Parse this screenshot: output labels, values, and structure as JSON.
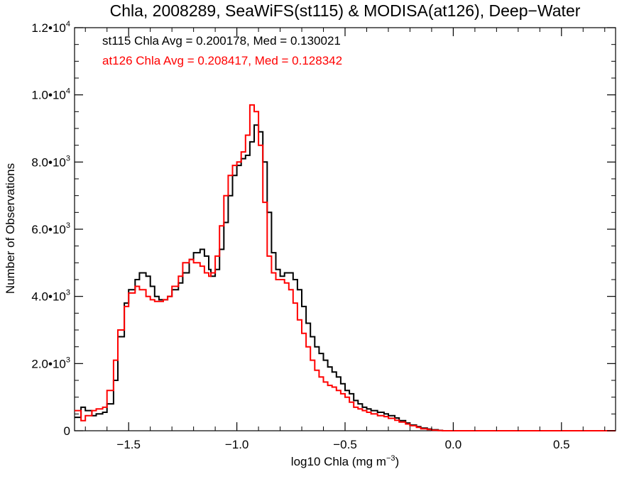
{
  "chart_data": {
    "type": "line",
    "step": true,
    "title": "Chla, 2008289, SeaWiFS(st115) & MODISA(at126), Deep−Water",
    "xlabel": {
      "text": "log10 Chla (mg m",
      "superscript": "−3",
      "suffix": ")"
    },
    "ylabel": "Number of Observations",
    "xlim": [
      -1.75,
      0.75
    ],
    "ylim": [
      0,
      12000
    ],
    "grid": false,
    "x_ticks": [
      {
        "value": -1.5,
        "label": "−1.5"
      },
      {
        "value": -1.0,
        "label": "−1.0"
      },
      {
        "value": -0.5,
        "label": "−0.5"
      },
      {
        "value": 0.0,
        "label": "0.0"
      },
      {
        "value": 0.5,
        "label": "0.5"
      }
    ],
    "y_ticks": [
      {
        "value": 0,
        "label": "0",
        "exp": ""
      },
      {
        "value": 2000,
        "label": "2.0•10",
        "exp": "3"
      },
      {
        "value": 4000,
        "label": "4.0•10",
        "exp": "3"
      },
      {
        "value": 6000,
        "label": "6.0•10",
        "exp": "3"
      },
      {
        "value": 8000,
        "label": "8.0•10",
        "exp": "3"
      },
      {
        "value": 10000,
        "label": "1.0•10",
        "exp": "4"
      },
      {
        "value": 12000,
        "label": "1.2•10",
        "exp": "4"
      }
    ],
    "annotations": [
      {
        "text": "st115 Chla Avg = 0.200178, Med = 0.130021",
        "color": "#000000"
      },
      {
        "text": "at126 Chla Avg = 0.208417, Med = 0.128342",
        "color": "#ff0000"
      }
    ],
    "series": [
      {
        "name": "st115",
        "color": "#000000",
        "x": [
          -1.75,
          -1.72,
          -1.7,
          -1.67,
          -1.65,
          -1.62,
          -1.6,
          -1.57,
          -1.55,
          -1.52,
          -1.5,
          -1.47,
          -1.45,
          -1.42,
          -1.4,
          -1.38,
          -1.36,
          -1.34,
          -1.32,
          -1.3,
          -1.27,
          -1.25,
          -1.22,
          -1.2,
          -1.17,
          -1.15,
          -1.13,
          -1.12,
          -1.1,
          -1.08,
          -1.06,
          -1.04,
          -1.02,
          -1.0,
          -0.98,
          -0.96,
          -0.94,
          -0.92,
          -0.9,
          -0.88,
          -0.86,
          -0.84,
          -0.82,
          -0.8,
          -0.78,
          -0.76,
          -0.74,
          -0.72,
          -0.7,
          -0.68,
          -0.66,
          -0.64,
          -0.62,
          -0.6,
          -0.58,
          -0.56,
          -0.54,
          -0.52,
          -0.5,
          -0.48,
          -0.46,
          -0.44,
          -0.42,
          -0.4,
          -0.38,
          -0.35,
          -0.32,
          -0.3,
          -0.27,
          -0.25,
          -0.22,
          -0.2,
          -0.17,
          -0.15,
          -0.12,
          -0.1,
          -0.07,
          -0.05,
          -0.02,
          0.0,
          0.03,
          0.05,
          0.08,
          0.1,
          0.15,
          0.2,
          0.25,
          0.3,
          0.35,
          0.4,
          0.45,
          0.5,
          0.55,
          0.6,
          0.65,
          0.7,
          0.75
        ],
        "y": [
          400,
          700,
          600,
          450,
          500,
          550,
          800,
          1500,
          2800,
          3800,
          4200,
          4500,
          4700,
          4600,
          4300,
          4000,
          3900,
          3900,
          4000,
          4200,
          4400,
          4700,
          5100,
          5300,
          5400,
          5200,
          4800,
          4600,
          4800,
          5400,
          6200,
          7000,
          7600,
          7900,
          8100,
          8200,
          8600,
          9100,
          8900,
          8000,
          6500,
          5300,
          4800,
          4600,
          4700,
          4700,
          4500,
          4200,
          3700,
          3200,
          2800,
          2500,
          2300,
          2100,
          1900,
          1750,
          1600,
          1400,
          1200,
          1100,
          900,
          800,
          700,
          650,
          600,
          550,
          500,
          450,
          380,
          300,
          230,
          170,
          120,
          80,
          50,
          30,
          10,
          0,
          0,
          0,
          0,
          0,
          0,
          0,
          0,
          0,
          0,
          0,
          0,
          0,
          0,
          0,
          0,
          0,
          0,
          0,
          0
        ]
      },
      {
        "name": "at126",
        "color": "#ff0000",
        "x": [
          -1.75,
          -1.72,
          -1.7,
          -1.67,
          -1.65,
          -1.62,
          -1.6,
          -1.57,
          -1.55,
          -1.52,
          -1.5,
          -1.47,
          -1.45,
          -1.42,
          -1.4,
          -1.38,
          -1.36,
          -1.34,
          -1.32,
          -1.3,
          -1.27,
          -1.25,
          -1.22,
          -1.2,
          -1.17,
          -1.15,
          -1.13,
          -1.12,
          -1.1,
          -1.08,
          -1.06,
          -1.04,
          -1.02,
          -1.0,
          -0.98,
          -0.96,
          -0.94,
          -0.92,
          -0.9,
          -0.88,
          -0.86,
          -0.84,
          -0.82,
          -0.8,
          -0.78,
          -0.76,
          -0.74,
          -0.72,
          -0.7,
          -0.68,
          -0.66,
          -0.64,
          -0.62,
          -0.6,
          -0.58,
          -0.56,
          -0.54,
          -0.52,
          -0.5,
          -0.48,
          -0.46,
          -0.44,
          -0.42,
          -0.4,
          -0.38,
          -0.35,
          -0.32,
          -0.3,
          -0.27,
          -0.25,
          -0.22,
          -0.2,
          -0.17,
          -0.15,
          -0.12,
          -0.1,
          -0.07,
          -0.05,
          -0.02,
          0.0,
          0.03,
          0.05,
          0.08,
          0.1,
          0.15,
          0.2,
          0.25,
          0.3,
          0.35,
          0.4,
          0.45,
          0.5,
          0.55,
          0.6,
          0.65,
          0.7,
          0.75
        ],
        "y": [
          600,
          300,
          450,
          600,
          650,
          700,
          1200,
          2100,
          3000,
          3700,
          4100,
          4300,
          4200,
          4000,
          3900,
          3850,
          3850,
          3900,
          4000,
          4300,
          4600,
          5000,
          5100,
          5000,
          4900,
          4700,
          4600,
          4700,
          5200,
          6100,
          7000,
          7600,
          7900,
          8000,
          8300,
          8800,
          9700,
          9500,
          8500,
          6800,
          5200,
          4700,
          4500,
          4500,
          4400,
          4200,
          3800,
          3300,
          2900,
          2500,
          2100,
          1800,
          1600,
          1450,
          1350,
          1300,
          1200,
          1100,
          1000,
          850,
          700,
          650,
          600,
          550,
          500,
          450,
          420,
          370,
          310,
          260,
          200,
          150,
          100,
          60,
          35,
          15,
          5,
          0,
          0,
          0,
          0,
          0,
          0,
          0,
          0,
          0,
          0,
          0,
          0,
          0,
          0,
          0,
          0,
          0,
          0,
          0,
          0
        ]
      }
    ]
  }
}
